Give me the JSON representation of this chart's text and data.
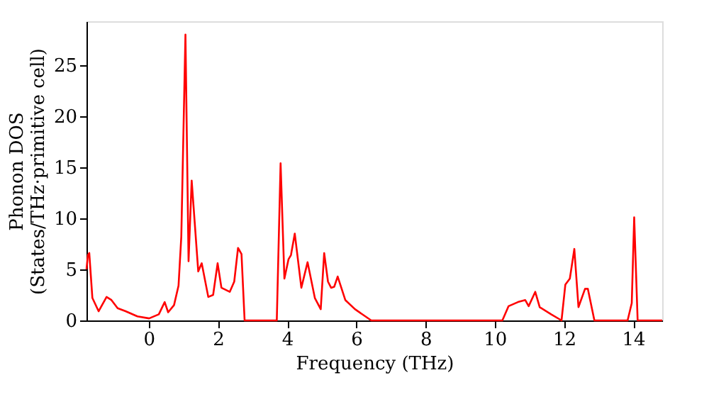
{
  "chart_data": {
    "type": "line",
    "xlabel": "Frequency (THz)",
    "ylabel": "Phonon DOS\n(States/THz·primitive cell)",
    "xlim": [
      -1.8,
      14.84
    ],
    "ylim": [
      0,
      29.3
    ],
    "xticks": [
      0,
      2,
      4,
      6,
      8,
      10,
      12,
      14
    ],
    "yticks": [
      0,
      5,
      10,
      15,
      20,
      25
    ],
    "grid": false,
    "legend": false,
    "line_style": "solid",
    "marker": "none",
    "series": [
      {
        "color": "#ff0000",
        "x": [
          -1.8,
          -1.76,
          -1.72,
          -1.63,
          -1.45,
          -1.22,
          -1.08,
          -0.9,
          -0.67,
          -0.33,
          0.01,
          0.29,
          0.46,
          0.56,
          0.73,
          0.86,
          0.94,
          1.06,
          1.15,
          1.24,
          1.43,
          1.53,
          1.72,
          1.86,
          1.99,
          2.1,
          2.34,
          2.47,
          2.58,
          2.68,
          2.77,
          3.7,
          3.81,
          3.92,
          4.04,
          4.11,
          4.22,
          4.41,
          4.59,
          4.8,
          4.97,
          5.07,
          5.18,
          5.27,
          5.36,
          5.46,
          5.68,
          5.96,
          6.43,
          10.22,
          10.4,
          10.67,
          10.88,
          10.98,
          11.17,
          11.3,
          11.63,
          11.93,
          12.04,
          12.17,
          12.3,
          12.42,
          12.61,
          12.69,
          12.88,
          13.84,
          13.96,
          14.03,
          14.13,
          14.84
        ],
        "values": [
          5.0,
          6.4,
          6.6,
          2.2,
          0.9,
          2.3,
          2.0,
          1.2,
          0.9,
          0.4,
          0.2,
          0.6,
          1.8,
          0.8,
          1.5,
          3.4,
          8.2,
          28.0,
          5.8,
          13.7,
          4.8,
          5.6,
          2.3,
          2.5,
          5.6,
          3.2,
          2.8,
          3.8,
          7.1,
          6.5,
          0,
          0,
          15.4,
          4.1,
          6.0,
          6.4,
          8.5,
          3.2,
          5.7,
          2.2,
          1.1,
          6.6,
          3.8,
          3.2,
          3.3,
          4.3,
          2.0,
          1.1,
          0,
          0,
          1.4,
          1.8,
          2.0,
          1.4,
          2.8,
          1.3,
          0.6,
          0,
          3.5,
          4.1,
          7.0,
          1.3,
          3.1,
          3.1,
          0,
          0,
          1.7,
          10.1,
          0,
          0
        ]
      }
    ]
  }
}
